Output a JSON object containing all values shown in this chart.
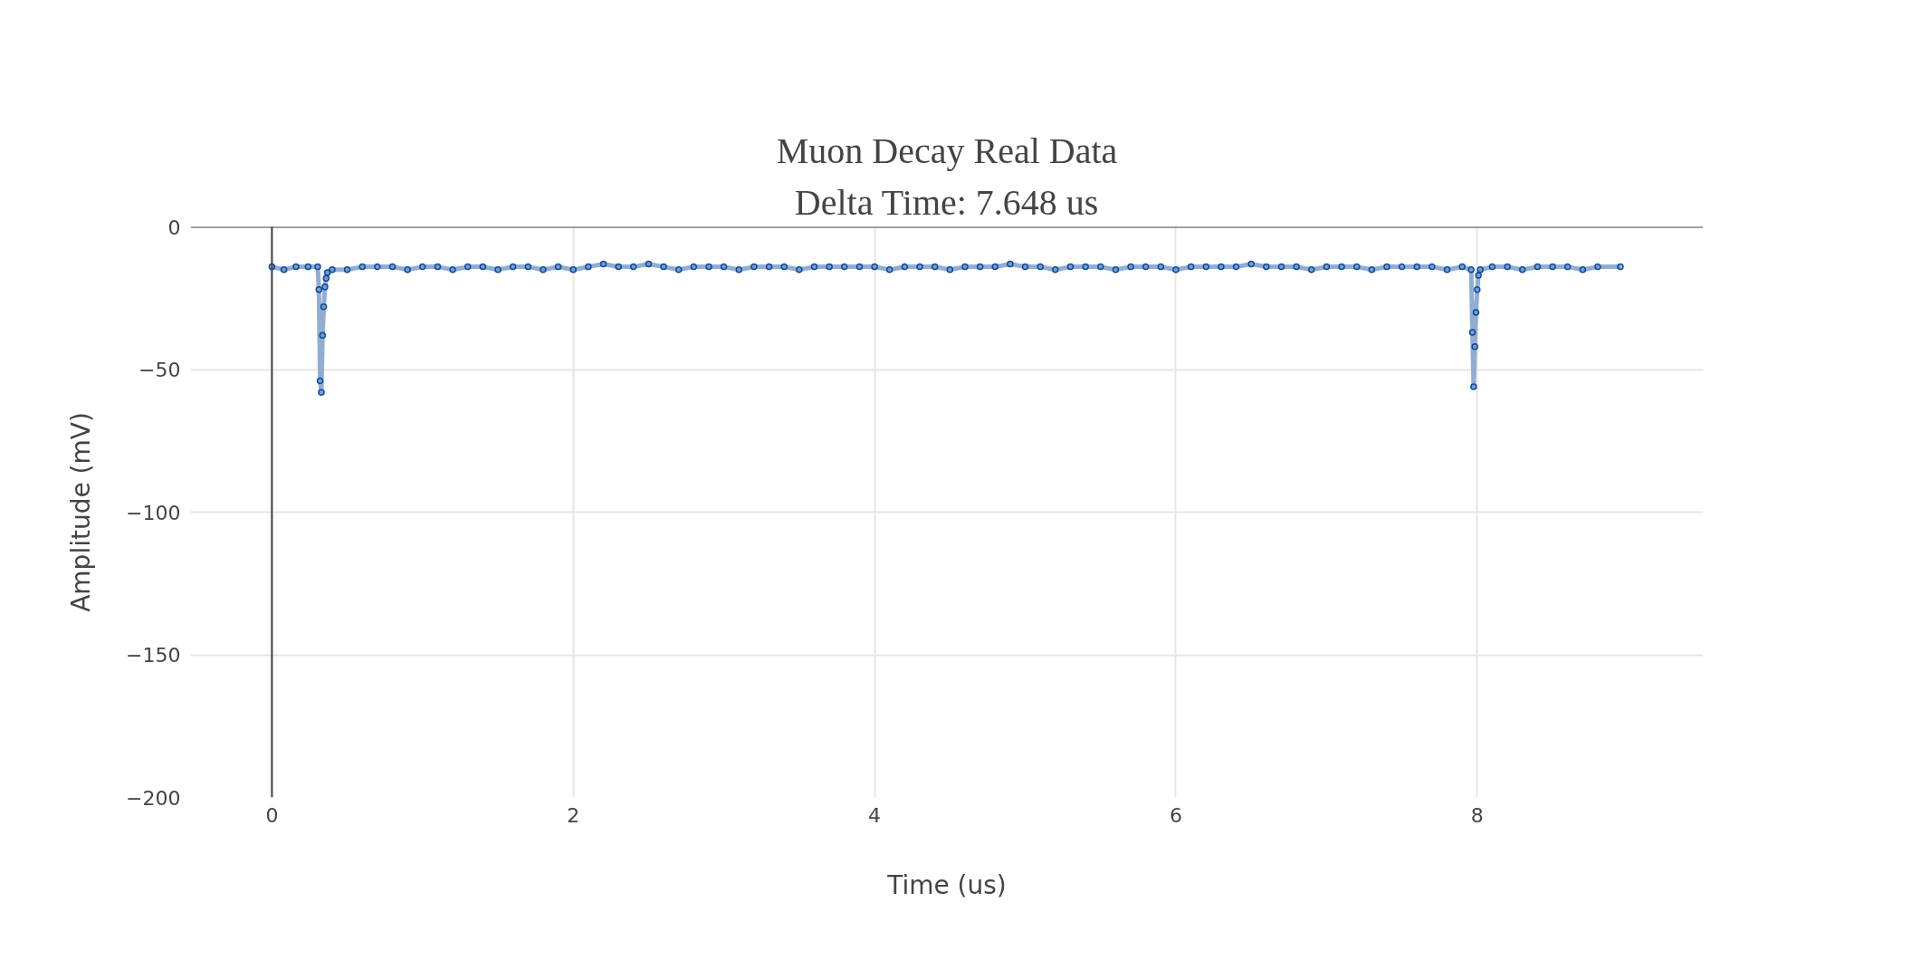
{
  "chart_data": {
    "type": "line",
    "title": "Muon Decay Real Data",
    "subtitle": "Delta Time: 7.648 us",
    "xlabel": "Time (us)",
    "ylabel": "Amplitude (mV)",
    "xlim": [
      -0.54,
      9.5
    ],
    "ylim": [
      -200,
      0
    ],
    "xticks": [
      0,
      2,
      4,
      6,
      8
    ],
    "yticks": [
      {
        "value": -200,
        "label": "−200"
      },
      {
        "value": -150,
        "label": "−150"
      },
      {
        "value": -100,
        "label": "−100"
      },
      {
        "value": -50,
        "label": "−50"
      },
      0
    ],
    "grid": true,
    "marker": "circle",
    "line_style": "solid",
    "series": [
      {
        "color": "#0b4a9e",
        "x": [
          0,
          0.08,
          0.16,
          0.24,
          0.304,
          0.312,
          0.32,
          0.328,
          0.336,
          0.344,
          0.352,
          0.36,
          0.368,
          0.4,
          0.5,
          0.6,
          0.7,
          0.8,
          0.9,
          1.0,
          1.1,
          1.2,
          1.3,
          1.4,
          1.5,
          1.6,
          1.7,
          1.8,
          1.9,
          2.0,
          2.1,
          2.2,
          2.3,
          2.4,
          2.5,
          2.6,
          2.7,
          2.8,
          2.9,
          3.0,
          3.1,
          3.2,
          3.3,
          3.4,
          3.5,
          3.6,
          3.7,
          3.8,
          3.9,
          4.0,
          4.1,
          4.2,
          4.3,
          4.4,
          4.5,
          4.6,
          4.7,
          4.8,
          4.9,
          5.0,
          5.1,
          5.2,
          5.3,
          5.4,
          5.5,
          5.6,
          5.7,
          5.8,
          5.9,
          6.0,
          6.1,
          6.2,
          6.3,
          6.4,
          6.5,
          6.6,
          6.7,
          6.8,
          6.9,
          7.0,
          7.1,
          7.2,
          7.3,
          7.4,
          7.5,
          7.6,
          7.7,
          7.8,
          7.9,
          7.96,
          7.968,
          7.976,
          7.984,
          7.992,
          8.0,
          8.008,
          8.02,
          8.1,
          8.2,
          8.3,
          8.4,
          8.5,
          8.6,
          8.7,
          8.8,
          8.95
        ],
        "values": [
          -14,
          -15,
          -14,
          -14,
          -14,
          -22,
          -54,
          -58,
          -38,
          -28,
          -21,
          -18,
          -16,
          -15,
          -15,
          -14,
          -14,
          -14,
          -15,
          -14,
          -14,
          -15,
          -14,
          -14,
          -15,
          -14,
          -14,
          -15,
          -14,
          -15,
          -14,
          -13,
          -14,
          -14,
          -13,
          -14,
          -15,
          -14,
          -14,
          -14,
          -15,
          -14,
          -14,
          -14,
          -15,
          -14,
          -14,
          -14,
          -14,
          -14,
          -15,
          -14,
          -14,
          -14,
          -15,
          -14,
          -14,
          -14,
          -13,
          -14,
          -14,
          -15,
          -14,
          -14,
          -14,
          -15,
          -14,
          -14,
          -14,
          -15,
          -14,
          -14,
          -14,
          -14,
          -13,
          -14,
          -14,
          -14,
          -15,
          -14,
          -14,
          -14,
          -15,
          -14,
          -14,
          -14,
          -14,
          -15,
          -14,
          -15,
          -37,
          -56,
          -42,
          -30,
          -22,
          -17,
          -15,
          -14,
          -14,
          -15,
          -14,
          -14,
          -14,
          -15,
          -14,
          -14
        ]
      }
    ]
  }
}
